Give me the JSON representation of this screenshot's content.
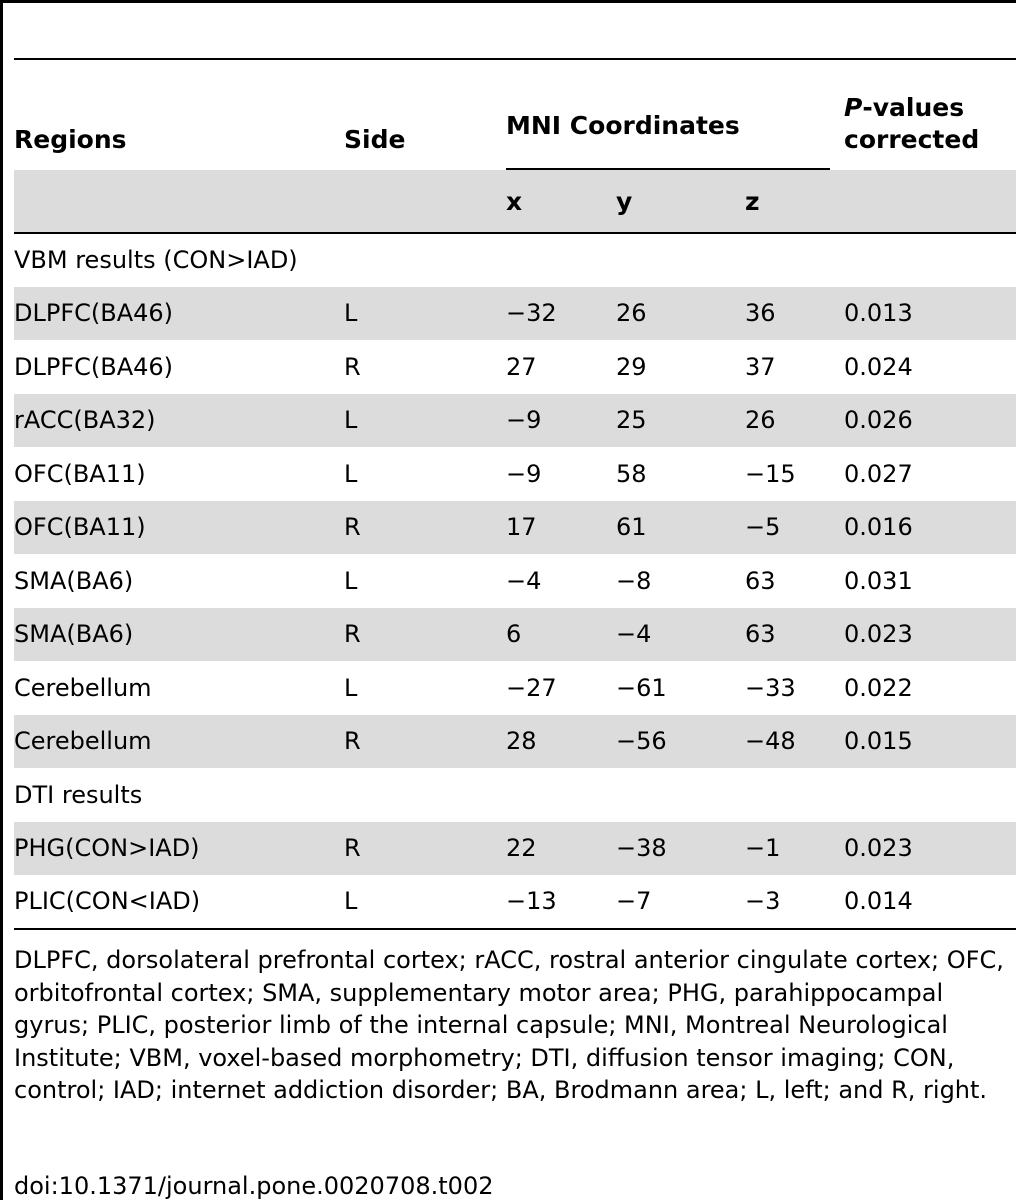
{
  "header": {
    "regions": "Regions",
    "side": "Side",
    "mni": "MNI Coordinates",
    "p_italic": "P",
    "p_rest_line1": "-values",
    "p_line2": "corrected",
    "x": "x",
    "y": "y",
    "z": "z"
  },
  "rows": [
    {
      "type": "section",
      "label": "VBM results (CON>IAD)"
    },
    {
      "type": "data",
      "region": "DLPFC(BA46)",
      "side": "L",
      "x": "−32",
      "y": "26",
      "z": "36",
      "p": "0.013"
    },
    {
      "type": "data",
      "region": "DLPFC(BA46)",
      "side": "R",
      "x": "27",
      "y": "29",
      "z": "37",
      "p": "0.024"
    },
    {
      "type": "data",
      "region": "rACC(BA32)",
      "side": "L",
      "x": "−9",
      "y": "25",
      "z": "26",
      "p": "0.026"
    },
    {
      "type": "data",
      "region": "OFC(BA11)",
      "side": "L",
      "x": "−9",
      "y": "58",
      "z": "−15",
      "p": "0.027"
    },
    {
      "type": "data",
      "region": "OFC(BA11)",
      "side": "R",
      "x": "17",
      "y": "61",
      "z": "−5",
      "p": "0.016"
    },
    {
      "type": "data",
      "region": "SMA(BA6)",
      "side": "L",
      "x": "−4",
      "y": "−8",
      "z": "63",
      "p": "0.031"
    },
    {
      "type": "data",
      "region": "SMA(BA6)",
      "side": "R",
      "x": "6",
      "y": "−4",
      "z": "63",
      "p": "0.023"
    },
    {
      "type": "data",
      "region": "Cerebellum",
      "side": "L",
      "x": "−27",
      "y": "−61",
      "z": "−33",
      "p": "0.022"
    },
    {
      "type": "data",
      "region": "Cerebellum",
      "side": "R",
      "x": "28",
      "y": "−56",
      "z": "−48",
      "p": "0.015"
    },
    {
      "type": "section",
      "label": "DTI results"
    },
    {
      "type": "data",
      "region": "PHG(CON>IAD)",
      "side": "R",
      "x": "22",
      "y": "−38",
      "z": "−1",
      "p": "0.023"
    },
    {
      "type": "data",
      "region": "PLIC(CON<IAD)",
      "side": "L",
      "x": "−13",
      "y": "−7",
      "z": "−3",
      "p": "0.014"
    }
  ],
  "footnote": "DLPFC, dorsolateral prefrontal cortex; rACC, rostral anterior cingulate cortex; OFC, orbitofrontal cortex; SMA, supplementary motor area; PHG, parahippocampal gyrus; PLIC, posterior limb of the internal capsule; MNI, Montreal Neurological Institute; VBM, voxel-based morphometry; DTI, diffusion tensor imaging; CON, control; IAD; internet addiction disorder; BA, Brodmann area; L, left; and R, right.",
  "doi": "doi:10.1371/journal.pone.0020708.t002"
}
